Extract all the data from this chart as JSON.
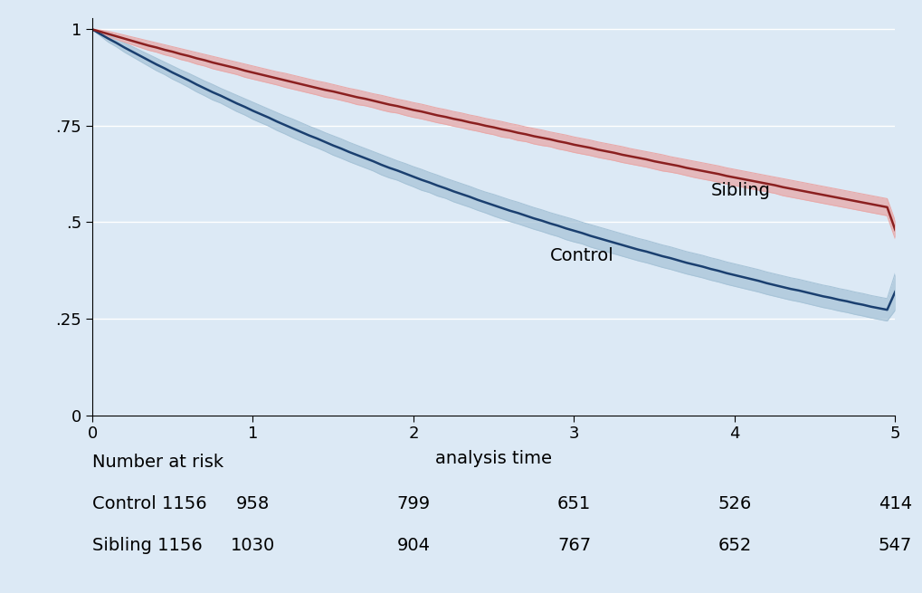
{
  "background_color": "#dce9f5",
  "plot_bg_color": "#dce9f5",
  "xlabel": "analysis time",
  "xlim": [
    0,
    5
  ],
  "ylim": [
    0,
    1.03
  ],
  "yticks": [
    0,
    0.25,
    0.5,
    0.75,
    1.0
  ],
  "ytick_labels": [
    "0",
    ".25",
    ".5",
    ".75",
    "1"
  ],
  "xticks": [
    0,
    1,
    2,
    3,
    4,
    5
  ],
  "grid_color": "#ffffff",
  "sibling_color": "#8b2020",
  "sibling_ci_color": "#e8aaaa",
  "control_color": "#1a3f6f",
  "control_ci_color": "#a8c4d8",
  "label_sibling": "Sibling",
  "label_control": "Control",
  "label_fontsize": 14,
  "axis_fontsize": 14,
  "tick_fontsize": 13,
  "risk_header": "Number at risk",
  "risk_times": [
    0,
    1,
    2,
    3,
    4,
    5
  ],
  "risk_control": [
    1156,
    958,
    799,
    651,
    526,
    414
  ],
  "risk_sibling": [
    1156,
    1030,
    904,
    767,
    652,
    547
  ],
  "sibling_x": [
    0.0,
    0.05,
    0.1,
    0.15,
    0.2,
    0.25,
    0.3,
    0.35,
    0.4,
    0.45,
    0.5,
    0.55,
    0.6,
    0.65,
    0.7,
    0.75,
    0.8,
    0.85,
    0.9,
    0.95,
    1.0,
    1.05,
    1.1,
    1.15,
    1.2,
    1.25,
    1.3,
    1.35,
    1.4,
    1.45,
    1.5,
    1.55,
    1.6,
    1.65,
    1.7,
    1.75,
    1.8,
    1.85,
    1.9,
    1.95,
    2.0,
    2.05,
    2.1,
    2.15,
    2.2,
    2.25,
    2.3,
    2.35,
    2.4,
    2.45,
    2.5,
    2.55,
    2.6,
    2.65,
    2.7,
    2.75,
    2.8,
    2.85,
    2.9,
    2.95,
    3.0,
    3.05,
    3.1,
    3.15,
    3.2,
    3.25,
    3.3,
    3.35,
    3.4,
    3.45,
    3.5,
    3.55,
    3.6,
    3.65,
    3.7,
    3.75,
    3.8,
    3.85,
    3.9,
    3.95,
    4.0,
    4.05,
    4.1,
    4.15,
    4.2,
    4.25,
    4.3,
    4.35,
    4.4,
    4.45,
    4.5,
    4.55,
    4.6,
    4.65,
    4.7,
    4.75,
    4.8,
    4.85,
    4.9,
    4.95,
    5.0
  ],
  "sibling_y": [
    1.0,
    0.994,
    0.988,
    0.982,
    0.976,
    0.97,
    0.964,
    0.958,
    0.953,
    0.947,
    0.942,
    0.936,
    0.931,
    0.925,
    0.92,
    0.914,
    0.909,
    0.904,
    0.899,
    0.893,
    0.888,
    0.883,
    0.878,
    0.873,
    0.868,
    0.863,
    0.858,
    0.853,
    0.848,
    0.843,
    0.839,
    0.834,
    0.829,
    0.824,
    0.82,
    0.815,
    0.81,
    0.805,
    0.801,
    0.796,
    0.791,
    0.787,
    0.782,
    0.777,
    0.773,
    0.768,
    0.764,
    0.759,
    0.755,
    0.75,
    0.746,
    0.741,
    0.737,
    0.732,
    0.728,
    0.723,
    0.719,
    0.715,
    0.71,
    0.706,
    0.701,
    0.697,
    0.693,
    0.688,
    0.684,
    0.68,
    0.675,
    0.671,
    0.667,
    0.663,
    0.658,
    0.654,
    0.65,
    0.646,
    0.641,
    0.637,
    0.633,
    0.629,
    0.625,
    0.62,
    0.616,
    0.612,
    0.608,
    0.604,
    0.6,
    0.596,
    0.591,
    0.587,
    0.583,
    0.579,
    0.575,
    0.571,
    0.567,
    0.563,
    0.559,
    0.555,
    0.551,
    0.547,
    0.543,
    0.539,
    0.48
  ],
  "sibling_ci_upper": [
    1.0,
    0.998,
    0.995,
    0.99,
    0.985,
    0.98,
    0.975,
    0.97,
    0.965,
    0.96,
    0.955,
    0.95,
    0.945,
    0.94,
    0.935,
    0.93,
    0.925,
    0.92,
    0.915,
    0.91,
    0.905,
    0.9,
    0.895,
    0.89,
    0.886,
    0.881,
    0.876,
    0.871,
    0.866,
    0.862,
    0.857,
    0.852,
    0.847,
    0.843,
    0.838,
    0.833,
    0.829,
    0.824,
    0.819,
    0.815,
    0.81,
    0.806,
    0.801,
    0.796,
    0.792,
    0.787,
    0.783,
    0.778,
    0.774,
    0.769,
    0.765,
    0.761,
    0.756,
    0.752,
    0.747,
    0.743,
    0.739,
    0.734,
    0.73,
    0.726,
    0.721,
    0.717,
    0.713,
    0.708,
    0.704,
    0.7,
    0.696,
    0.691,
    0.687,
    0.683,
    0.679,
    0.675,
    0.67,
    0.666,
    0.662,
    0.658,
    0.654,
    0.65,
    0.646,
    0.641,
    0.637,
    0.633,
    0.629,
    0.625,
    0.621,
    0.617,
    0.613,
    0.609,
    0.605,
    0.601,
    0.597,
    0.593,
    0.589,
    0.585,
    0.581,
    0.577,
    0.573,
    0.569,
    0.565,
    0.561,
    0.503
  ],
  "sibling_ci_lower": [
    1.0,
    0.99,
    0.981,
    0.974,
    0.967,
    0.96,
    0.953,
    0.946,
    0.941,
    0.934,
    0.929,
    0.922,
    0.917,
    0.91,
    0.905,
    0.898,
    0.893,
    0.888,
    0.883,
    0.876,
    0.871,
    0.866,
    0.861,
    0.856,
    0.85,
    0.845,
    0.84,
    0.835,
    0.83,
    0.824,
    0.821,
    0.816,
    0.811,
    0.805,
    0.802,
    0.797,
    0.791,
    0.786,
    0.783,
    0.777,
    0.772,
    0.768,
    0.763,
    0.758,
    0.754,
    0.749,
    0.745,
    0.74,
    0.736,
    0.731,
    0.727,
    0.721,
    0.718,
    0.712,
    0.709,
    0.703,
    0.699,
    0.696,
    0.69,
    0.686,
    0.681,
    0.677,
    0.673,
    0.668,
    0.664,
    0.66,
    0.655,
    0.651,
    0.647,
    0.643,
    0.638,
    0.633,
    0.63,
    0.626,
    0.621,
    0.616,
    0.612,
    0.608,
    0.604,
    0.599,
    0.595,
    0.591,
    0.587,
    0.583,
    0.579,
    0.575,
    0.569,
    0.565,
    0.561,
    0.557,
    0.553,
    0.549,
    0.545,
    0.541,
    0.537,
    0.533,
    0.529,
    0.525,
    0.521,
    0.517,
    0.457
  ],
  "control_x": [
    0.0,
    0.05,
    0.1,
    0.15,
    0.2,
    0.25,
    0.3,
    0.35,
    0.4,
    0.45,
    0.5,
    0.55,
    0.6,
    0.65,
    0.7,
    0.75,
    0.8,
    0.85,
    0.9,
    0.95,
    1.0,
    1.05,
    1.1,
    1.15,
    1.2,
    1.25,
    1.3,
    1.35,
    1.4,
    1.45,
    1.5,
    1.55,
    1.6,
    1.65,
    1.7,
    1.75,
    1.8,
    1.85,
    1.9,
    1.95,
    2.0,
    2.05,
    2.1,
    2.15,
    2.2,
    2.25,
    2.3,
    2.35,
    2.4,
    2.45,
    2.5,
    2.55,
    2.6,
    2.65,
    2.7,
    2.75,
    2.8,
    2.85,
    2.9,
    2.95,
    3.0,
    3.05,
    3.1,
    3.15,
    3.2,
    3.25,
    3.3,
    3.35,
    3.4,
    3.45,
    3.5,
    3.55,
    3.6,
    3.65,
    3.7,
    3.75,
    3.8,
    3.85,
    3.9,
    3.95,
    4.0,
    4.05,
    4.1,
    4.15,
    4.2,
    4.25,
    4.3,
    4.35,
    4.4,
    4.45,
    4.5,
    4.55,
    4.6,
    4.65,
    4.7,
    4.75,
    4.8,
    4.85,
    4.9,
    4.95,
    5.0
  ],
  "control_y": [
    1.0,
    0.988,
    0.976,
    0.965,
    0.953,
    0.942,
    0.931,
    0.92,
    0.909,
    0.899,
    0.888,
    0.878,
    0.868,
    0.857,
    0.847,
    0.837,
    0.828,
    0.818,
    0.808,
    0.799,
    0.789,
    0.78,
    0.771,
    0.761,
    0.752,
    0.743,
    0.734,
    0.725,
    0.717,
    0.708,
    0.699,
    0.691,
    0.682,
    0.674,
    0.666,
    0.658,
    0.649,
    0.641,
    0.634,
    0.626,
    0.618,
    0.61,
    0.603,
    0.595,
    0.588,
    0.58,
    0.573,
    0.566,
    0.558,
    0.551,
    0.544,
    0.537,
    0.53,
    0.524,
    0.517,
    0.51,
    0.504,
    0.497,
    0.491,
    0.484,
    0.478,
    0.472,
    0.465,
    0.459,
    0.453,
    0.447,
    0.441,
    0.435,
    0.429,
    0.424,
    0.418,
    0.412,
    0.407,
    0.401,
    0.395,
    0.39,
    0.385,
    0.379,
    0.374,
    0.368,
    0.363,
    0.358,
    0.353,
    0.348,
    0.342,
    0.337,
    0.332,
    0.327,
    0.323,
    0.318,
    0.313,
    0.308,
    0.304,
    0.299,
    0.295,
    0.29,
    0.286,
    0.281,
    0.277,
    0.273,
    0.32
  ],
  "control_ci_upper": [
    1.0,
    0.993,
    0.985,
    0.975,
    0.965,
    0.955,
    0.945,
    0.935,
    0.925,
    0.915,
    0.905,
    0.895,
    0.886,
    0.876,
    0.866,
    0.857,
    0.847,
    0.838,
    0.829,
    0.82,
    0.811,
    0.802,
    0.793,
    0.784,
    0.775,
    0.767,
    0.758,
    0.749,
    0.741,
    0.732,
    0.724,
    0.716,
    0.707,
    0.699,
    0.691,
    0.683,
    0.675,
    0.667,
    0.659,
    0.652,
    0.644,
    0.637,
    0.629,
    0.622,
    0.614,
    0.607,
    0.6,
    0.593,
    0.585,
    0.578,
    0.572,
    0.565,
    0.558,
    0.552,
    0.545,
    0.538,
    0.532,
    0.525,
    0.519,
    0.513,
    0.507,
    0.5,
    0.494,
    0.488,
    0.482,
    0.476,
    0.47,
    0.464,
    0.458,
    0.453,
    0.447,
    0.441,
    0.436,
    0.43,
    0.424,
    0.419,
    0.414,
    0.408,
    0.403,
    0.397,
    0.392,
    0.387,
    0.382,
    0.377,
    0.371,
    0.366,
    0.361,
    0.356,
    0.352,
    0.347,
    0.342,
    0.337,
    0.333,
    0.328,
    0.324,
    0.319,
    0.315,
    0.31,
    0.306,
    0.302,
    0.368
  ],
  "control_ci_lower": [
    1.0,
    0.983,
    0.967,
    0.955,
    0.941,
    0.929,
    0.917,
    0.905,
    0.893,
    0.883,
    0.871,
    0.861,
    0.85,
    0.838,
    0.828,
    0.817,
    0.809,
    0.798,
    0.787,
    0.778,
    0.767,
    0.758,
    0.749,
    0.738,
    0.729,
    0.719,
    0.71,
    0.701,
    0.693,
    0.684,
    0.674,
    0.666,
    0.657,
    0.649,
    0.641,
    0.633,
    0.623,
    0.615,
    0.609,
    0.6,
    0.592,
    0.583,
    0.577,
    0.568,
    0.562,
    0.553,
    0.546,
    0.539,
    0.531,
    0.524,
    0.516,
    0.509,
    0.502,
    0.496,
    0.489,
    0.482,
    0.476,
    0.469,
    0.463,
    0.455,
    0.449,
    0.444,
    0.436,
    0.43,
    0.424,
    0.418,
    0.412,
    0.406,
    0.4,
    0.395,
    0.389,
    0.383,
    0.378,
    0.372,
    0.366,
    0.361,
    0.356,
    0.35,
    0.345,
    0.339,
    0.334,
    0.329,
    0.324,
    0.319,
    0.313,
    0.308,
    0.303,
    0.298,
    0.294,
    0.289,
    0.284,
    0.279,
    0.275,
    0.27,
    0.266,
    0.261,
    0.257,
    0.252,
    0.248,
    0.244,
    0.272
  ]
}
